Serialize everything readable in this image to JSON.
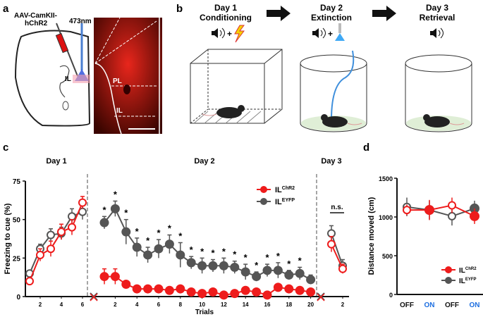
{
  "panels": {
    "a": {
      "label": "a",
      "virus": "AAV-CamKII-",
      "virus2": "hChR2",
      "laser": "473nm",
      "region_il": "IL",
      "image_pl": "PL",
      "image_il": "IL"
    },
    "b": {
      "label": "b",
      "days": [
        {
          "title": "Day 1",
          "subtitle": "Conditioning"
        },
        {
          "title": "Day 2",
          "subtitle": "Extinction"
        },
        {
          "title": "Day 3",
          "subtitle": "Retrieval"
        }
      ],
      "plus": "+"
    },
    "c": {
      "label": "c"
    },
    "d": {
      "label": "d"
    }
  },
  "colors": {
    "chr2": "#ee1c1c",
    "eyfp": "#555555",
    "on_label": "#1e6fe0"
  },
  "chart_data": [
    {
      "type": "line",
      "panel": "c",
      "ylabel": "Freezing to cue (%)",
      "xlabel": "Trials",
      "ylim": [
        0,
        75
      ],
      "yticks": [
        0,
        25,
        50,
        75
      ],
      "sections": [
        {
          "title": "Day 1",
          "trials": [
            1,
            2,
            3,
            4,
            5,
            6
          ],
          "xticks": [
            2,
            4,
            6
          ],
          "series": [
            {
              "name": "ChR2",
              "marker": "open",
              "values": [
                10,
                27,
                31,
                42,
                45,
                61
              ],
              "err": [
                2,
                4,
                5,
                5,
                5,
                4
              ]
            },
            {
              "name": "EYFP",
              "marker": "open",
              "values": [
                15,
                31,
                40,
                41,
                52,
                55
              ],
              "err": [
                2,
                3,
                4,
                4,
                5,
                5
              ]
            }
          ]
        },
        {
          "title": "Day 2",
          "trials": [
            1,
            2,
            3,
            4,
            5,
            6,
            7,
            8,
            9,
            10,
            11,
            12,
            13,
            14,
            15,
            16,
            17,
            18,
            19,
            20
          ],
          "xticks": [
            2,
            4,
            6,
            8,
            10,
            12,
            14,
            16,
            18,
            20
          ],
          "series": [
            {
              "name": "ChR2",
              "marker": "filled",
              "values": [
                13,
                13,
                8,
                5,
                5,
                5,
                4,
                5,
                3,
                2,
                3,
                1,
                2,
                4,
                3,
                1,
                6,
                5,
                4,
                3
              ],
              "err": [
                5,
                5,
                2,
                1,
                1,
                1,
                1,
                1,
                1,
                1,
                1,
                1,
                1,
                1,
                1,
                1,
                1,
                1,
                1,
                1
              ]
            },
            {
              "name": "EYFP",
              "marker": "filled",
              "values": [
                48,
                57,
                42,
                32,
                27,
                31,
                34,
                27,
                22,
                20,
                20,
                20,
                19,
                16,
                13,
                17,
                17,
                14,
                15,
                11
              ],
              "err": [
                4,
                5,
                8,
                6,
                5,
                6,
                6,
                8,
                4,
                5,
                4,
                5,
                4,
                5,
                3,
                4,
                5,
                3,
                4,
                3
              ]
            }
          ],
          "significance": {
            "symbol": "*",
            "trials": [
              1,
              2,
              3,
              4,
              5,
              6,
              7,
              8,
              9,
              10,
              11,
              12,
              13,
              14,
              15,
              16,
              17,
              18,
              19
            ]
          }
        },
        {
          "title": "Day 3",
          "trials": [
            1,
            2
          ],
          "xticks": [
            2
          ],
          "series": [
            {
              "name": "ChR2",
              "marker": "open",
              "values": [
                34,
                18
              ],
              "err": [
                5,
                3
              ]
            },
            {
              "name": "EYFP",
              "marker": "open",
              "values": [
                41,
                20
              ],
              "err": [
                5,
                4
              ]
            }
          ],
          "annotation": "n.s."
        }
      ],
      "legend": {
        "placement": "top-right",
        "entries": [
          {
            "base": "IL",
            "sup": "ChR2",
            "series": "ChR2"
          },
          {
            "base": "IL",
            "sup": "EYFP",
            "series": "EYFP"
          }
        ]
      }
    },
    {
      "type": "line",
      "panel": "d",
      "ylabel": "Distance moved (cm)",
      "ylim": [
        0,
        1500
      ],
      "yticks": [
        0,
        500,
        1000,
        1500
      ],
      "categories": [
        "OFF",
        "ON",
        "OFF",
        "ON"
      ],
      "series": [
        {
          "name": "ChR2",
          "values": [
            1090,
            1090,
            1150,
            1010
          ],
          "err": [
            70,
            130,
            100,
            100
          ]
        },
        {
          "name": "EYFP",
          "values": [
            1130,
            1090,
            1010,
            1110
          ],
          "err": [
            120,
            120,
            120,
            100
          ]
        }
      ],
      "legend": {
        "placement": "bottom-right",
        "entries": [
          {
            "base": "IL",
            "sup": "ChR2",
            "series": "ChR2"
          },
          {
            "base": "IL",
            "sup": "EYFP",
            "series": "EYFP"
          }
        ]
      }
    }
  ]
}
